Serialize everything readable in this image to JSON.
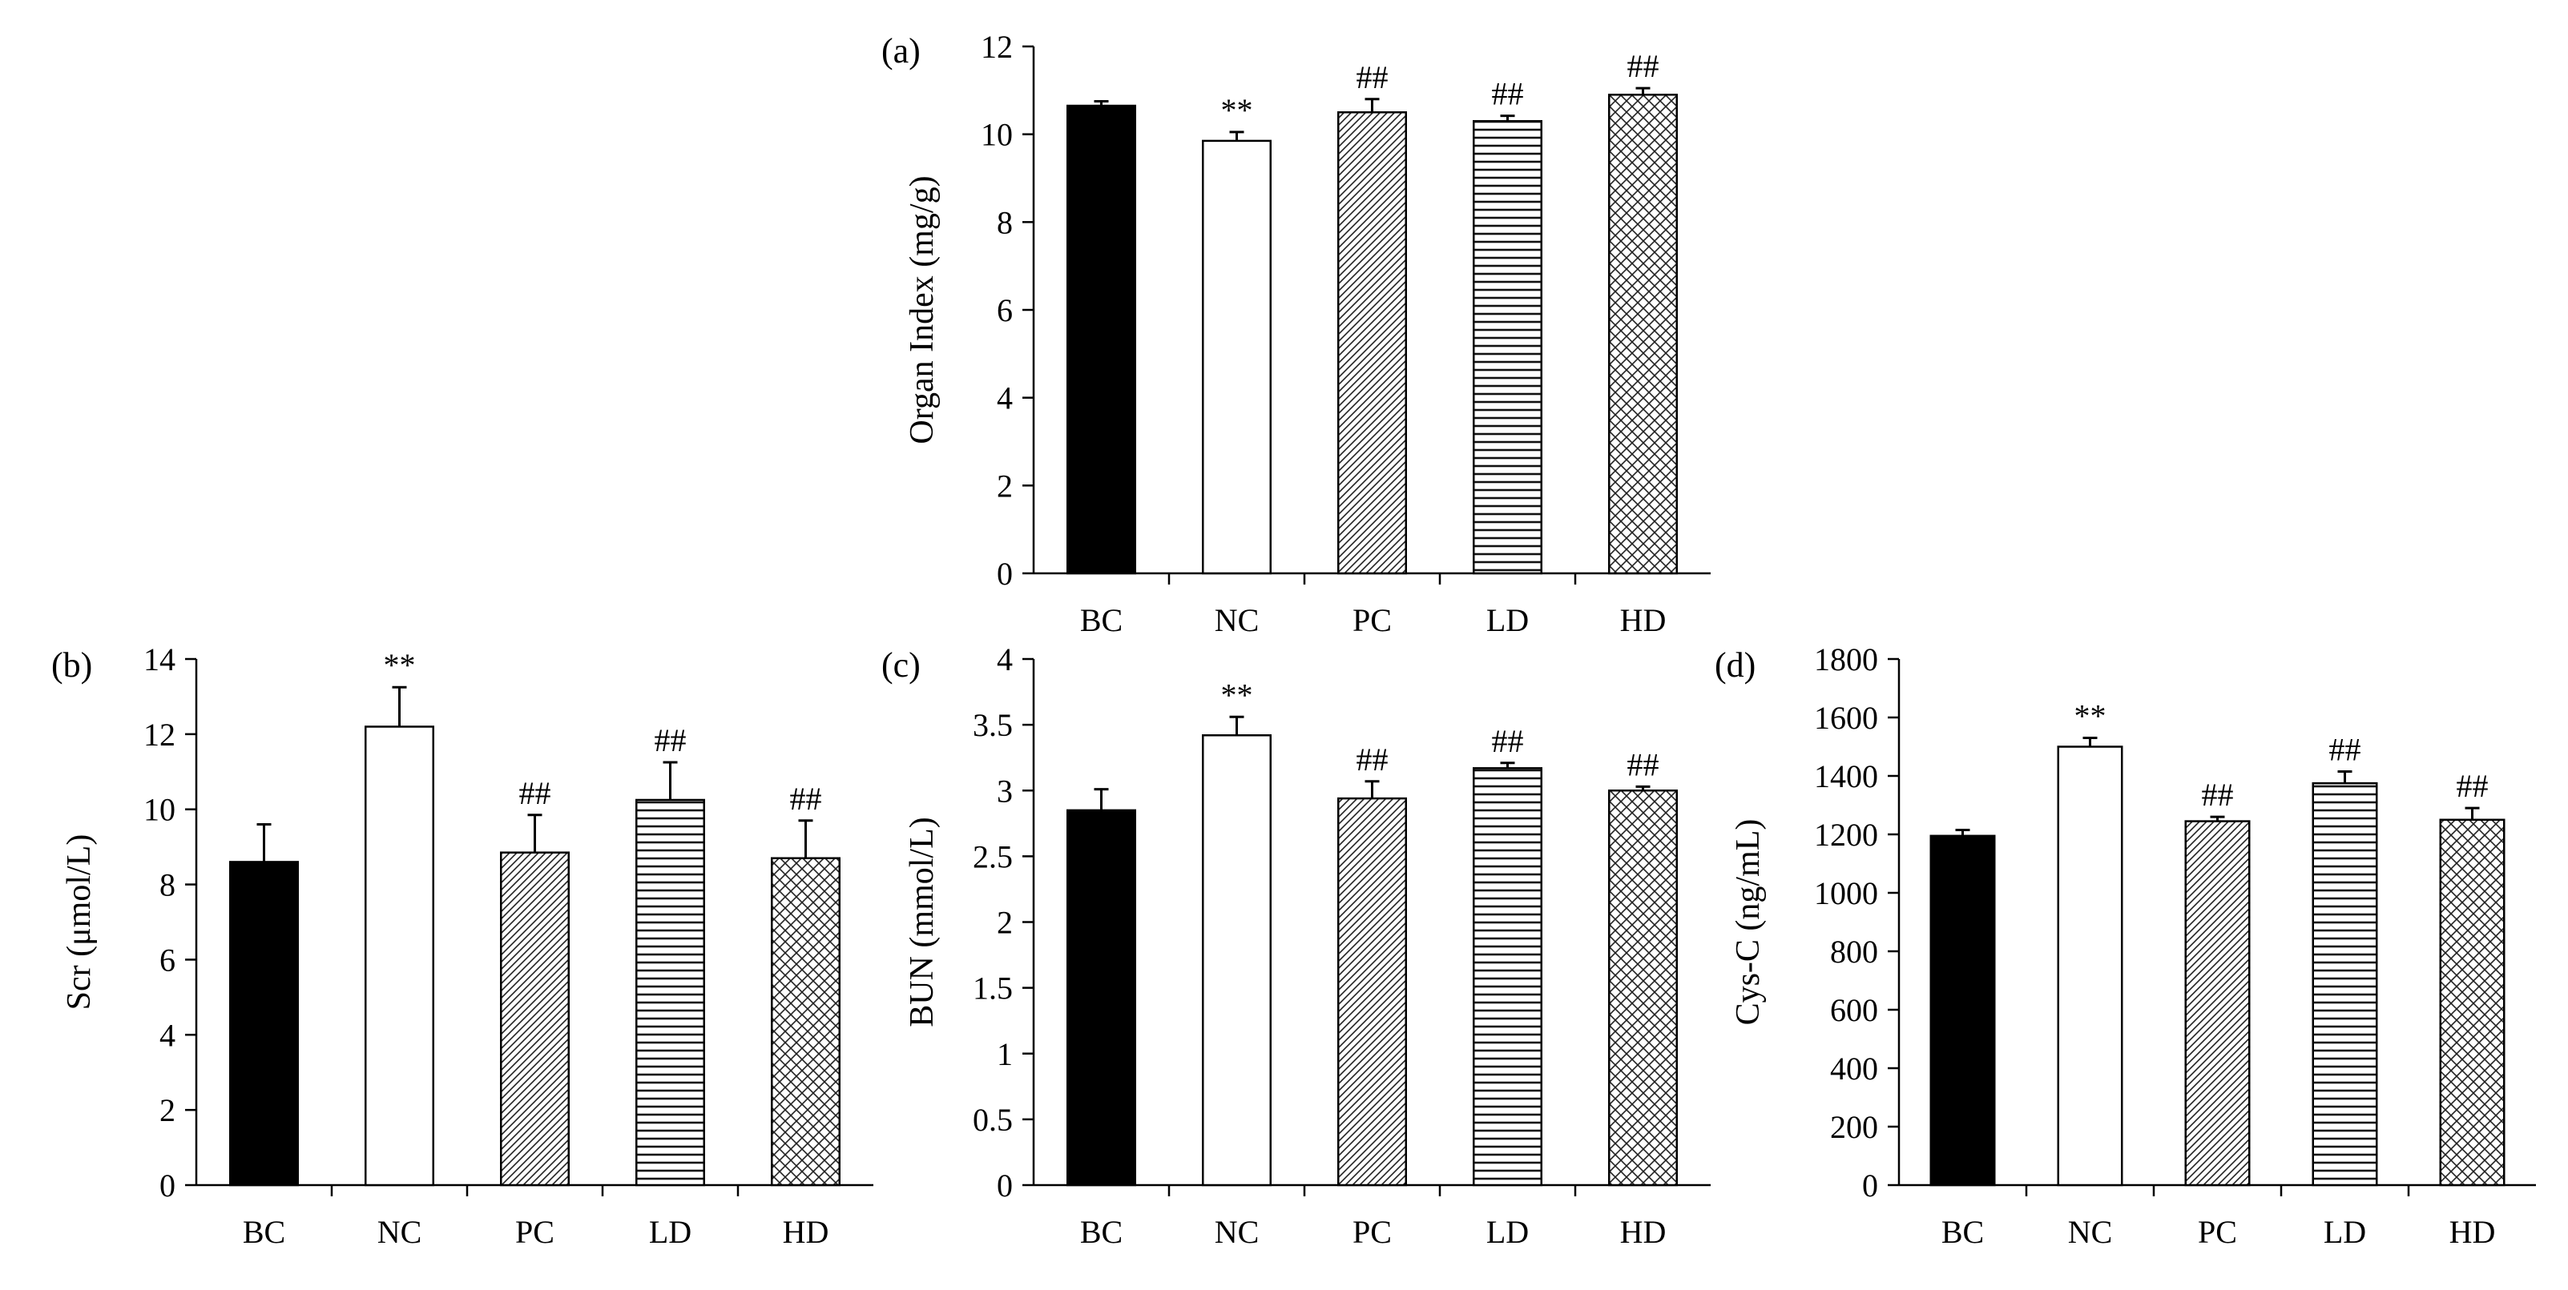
{
  "figure": {
    "charts": 4,
    "groups": [
      "BC",
      "NC",
      "PC",
      "LD",
      "HD"
    ]
  },
  "chart_data": [
    {
      "id": "a",
      "type": "bar",
      "panel_label": "(a)",
      "title": "",
      "xlabel": "",
      "ylabel": "Organ Index (mg/g)",
      "categories": [
        "BC",
        "NC",
        "PC",
        "LD",
        "HD"
      ],
      "values": [
        10.65,
        9.85,
        10.5,
        10.3,
        10.9
      ],
      "errors": [
        0.1,
        0.2,
        0.3,
        0.12,
        0.15
      ],
      "significance": [
        "",
        "**",
        "##",
        "##",
        "##"
      ],
      "ylim": [
        0,
        12
      ],
      "yticks": [
        0,
        2,
        4,
        6,
        8,
        10,
        12
      ],
      "ytick_labels": [
        "0",
        "2",
        "4",
        "6",
        "8",
        "10",
        "12"
      ],
      "patterns": [
        "solid-black",
        "white",
        "diagonal-hatch",
        "horizontal-lines",
        "crosshatch"
      ]
    },
    {
      "id": "b",
      "type": "bar",
      "panel_label": "(b)",
      "title": "",
      "xlabel": "",
      "ylabel": "Scr (μmol/L)",
      "categories": [
        "BC",
        "NC",
        "PC",
        "LD",
        "HD"
      ],
      "values": [
        8.6,
        12.2,
        8.85,
        10.25,
        8.7
      ],
      "errors": [
        1.0,
        1.05,
        1.0,
        1.0,
        1.0
      ],
      "significance": [
        "",
        "**",
        "##",
        "##",
        "##"
      ],
      "ylim": [
        0,
        14
      ],
      "yticks": [
        0,
        2,
        4,
        6,
        8,
        10,
        12,
        14
      ],
      "ytick_labels": [
        "0",
        "2",
        "4",
        "6",
        "8",
        "10",
        "12",
        "14"
      ],
      "patterns": [
        "solid-black",
        "white",
        "diagonal-hatch",
        "horizontal-lines",
        "crosshatch"
      ]
    },
    {
      "id": "c",
      "type": "bar",
      "panel_label": "(c)",
      "title": "",
      "xlabel": "",
      "ylabel": "BUN (mmol/L)",
      "categories": [
        "BC",
        "NC",
        "PC",
        "LD",
        "HD"
      ],
      "values": [
        2.85,
        3.42,
        2.94,
        3.17,
        3.0
      ],
      "errors": [
        0.16,
        0.14,
        0.13,
        0.04,
        0.03
      ],
      "significance": [
        "",
        "**",
        "##",
        "##",
        "##"
      ],
      "ylim": [
        0,
        4
      ],
      "yticks": [
        0,
        0.5,
        1,
        1.5,
        2,
        2.5,
        3,
        3.5,
        4
      ],
      "ytick_labels": [
        "0",
        "0.5",
        "1",
        "1.5",
        "2",
        "2.5",
        "3",
        "3.5",
        "4"
      ],
      "patterns": [
        "solid-black",
        "white",
        "diagonal-hatch",
        "horizontal-lines",
        "crosshatch"
      ]
    },
    {
      "id": "d",
      "type": "bar",
      "panel_label": "(d)",
      "title": "",
      "xlabel": "",
      "ylabel": "Cys-C (ng/mL)",
      "categories": [
        "BC",
        "NC",
        "PC",
        "LD",
        "HD"
      ],
      "values": [
        1195,
        1500,
        1245,
        1375,
        1250
      ],
      "errors": [
        20,
        30,
        15,
        40,
        40
      ],
      "significance": [
        "",
        "**",
        "##",
        "##",
        "##"
      ],
      "ylim": [
        0,
        1800
      ],
      "yticks": [
        0,
        200,
        400,
        600,
        800,
        1000,
        1200,
        1400,
        1600,
        1800
      ],
      "ytick_labels": [
        "0",
        "200",
        "400",
        "600",
        "800",
        "1000",
        "1200",
        "1400",
        "1600",
        "1800"
      ],
      "patterns": [
        "solid-black",
        "white",
        "diagonal-hatch",
        "horizontal-lines",
        "crosshatch"
      ]
    }
  ]
}
